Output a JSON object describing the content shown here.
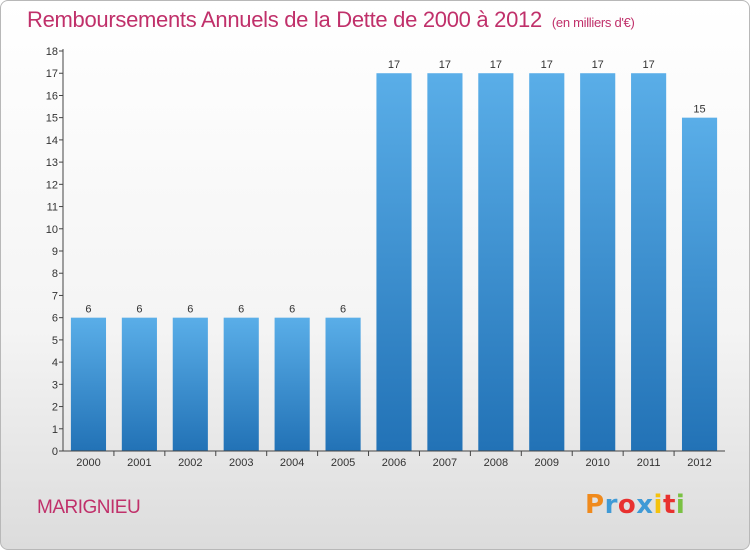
{
  "title": "Remboursements Annuels de la Dette de 2000 à 2012",
  "unit": "(en milliers d'€)",
  "location": "MARIGNIEU",
  "logo": {
    "text": "Proxiti",
    "colors": [
      "#f08a1c",
      "#3f9ad6",
      "#e8312f",
      "#3f9ad6",
      "#f4c20d",
      "#e8312f",
      "#7ac143"
    ]
  },
  "colors": {
    "title": "#c0306a",
    "bar_top": "#5aaee8",
    "bar_bottom": "#2272b6"
  },
  "chart_data": {
    "type": "bar",
    "categories": [
      "2000",
      "2001",
      "2002",
      "2003",
      "2004",
      "2005",
      "2006",
      "2007",
      "2008",
      "2009",
      "2010",
      "2011",
      "2012"
    ],
    "values": [
      6,
      6,
      6,
      6,
      6,
      6,
      17,
      17,
      17,
      17,
      17,
      17,
      15
    ],
    "ylim": [
      0,
      18
    ],
    "yticks": [
      0,
      1,
      2,
      3,
      4,
      5,
      6,
      7,
      8,
      9,
      10,
      11,
      12,
      13,
      14,
      15,
      16,
      17,
      18
    ],
    "grid": false
  }
}
